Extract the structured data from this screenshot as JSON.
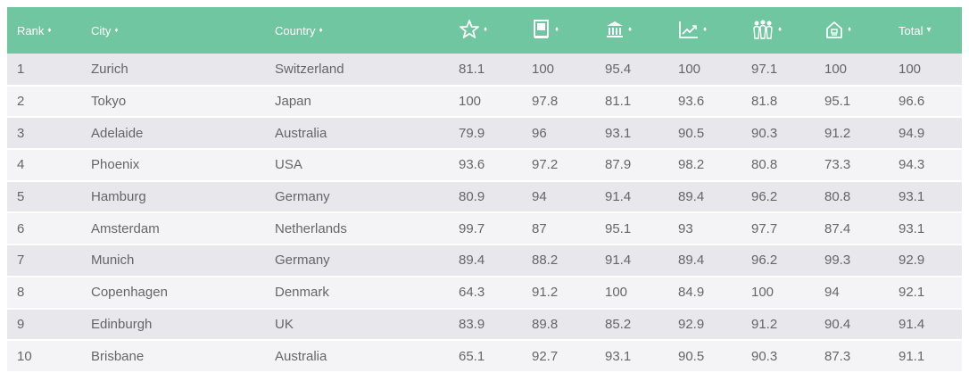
{
  "colors": {
    "header_bg": "#6fc6a0",
    "header_text": "#ffffff",
    "row_odd": "#e7e7ec",
    "row_even": "#f4f4f6",
    "cell_text": "#666666"
  },
  "header": {
    "rank": "Rank",
    "city": "City",
    "country": "Country",
    "total": "Total",
    "sort_symbol": "♦",
    "sort_desc_symbol": "▾",
    "icons": [
      "star-icon",
      "book-icon",
      "museum-icon",
      "line-chart-icon",
      "people-icon",
      "house-icon"
    ]
  },
  "rows": [
    {
      "rank": "1",
      "city": "Zurich",
      "country": "Switzerland",
      "s1": "81.1",
      "s2": "100",
      "s3": "95.4",
      "s4": "100",
      "s5": "97.1",
      "s6": "100",
      "total": "100"
    },
    {
      "rank": "2",
      "city": "Tokyo",
      "country": "Japan",
      "s1": "100",
      "s2": "97.8",
      "s3": "81.1",
      "s4": "93.6",
      "s5": "81.8",
      "s6": "95.1",
      "total": "96.6"
    },
    {
      "rank": "3",
      "city": "Adelaide",
      "country": "Australia",
      "s1": "79.9",
      "s2": "96",
      "s3": "93.1",
      "s4": "90.5",
      "s5": "90.3",
      "s6": "91.2",
      "total": "94.9"
    },
    {
      "rank": "4",
      "city": "Phoenix",
      "country": "USA",
      "s1": "93.6",
      "s2": "97.2",
      "s3": "87.9",
      "s4": "98.2",
      "s5": "80.8",
      "s6": "73.3",
      "total": "94.3"
    },
    {
      "rank": "5",
      "city": "Hamburg",
      "country": "Germany",
      "s1": "80.9",
      "s2": "94",
      "s3": "91.4",
      "s4": "89.4",
      "s5": "96.2",
      "s6": "80.8",
      "total": "93.1"
    },
    {
      "rank": "6",
      "city": "Amsterdam",
      "country": "Netherlands",
      "s1": "99.7",
      "s2": "87",
      "s3": "95.1",
      "s4": "93",
      "s5": "97.7",
      "s6": "87.4",
      "total": "93.1"
    },
    {
      "rank": "7",
      "city": "Munich",
      "country": "Germany",
      "s1": "89.4",
      "s2": "88.2",
      "s3": "91.4",
      "s4": "89.4",
      "s5": "96.2",
      "s6": "99.3",
      "total": "92.9"
    },
    {
      "rank": "8",
      "city": "Copenhagen",
      "country": "Denmark",
      "s1": "64.3",
      "s2": "91.2",
      "s3": "100",
      "s4": "84.9",
      "s5": "100",
      "s6": "94",
      "total": "92.1"
    },
    {
      "rank": "9",
      "city": "Edinburgh",
      "country": "UK",
      "s1": "83.9",
      "s2": "89.8",
      "s3": "85.2",
      "s4": "92.9",
      "s5": "91.2",
      "s6": "90.4",
      "total": "91.4"
    },
    {
      "rank": "10",
      "city": "Brisbane",
      "country": "Australia",
      "s1": "65.1",
      "s2": "92.7",
      "s3": "93.1",
      "s4": "90.5",
      "s5": "90.3",
      "s6": "87.3",
      "total": "91.1"
    }
  ]
}
